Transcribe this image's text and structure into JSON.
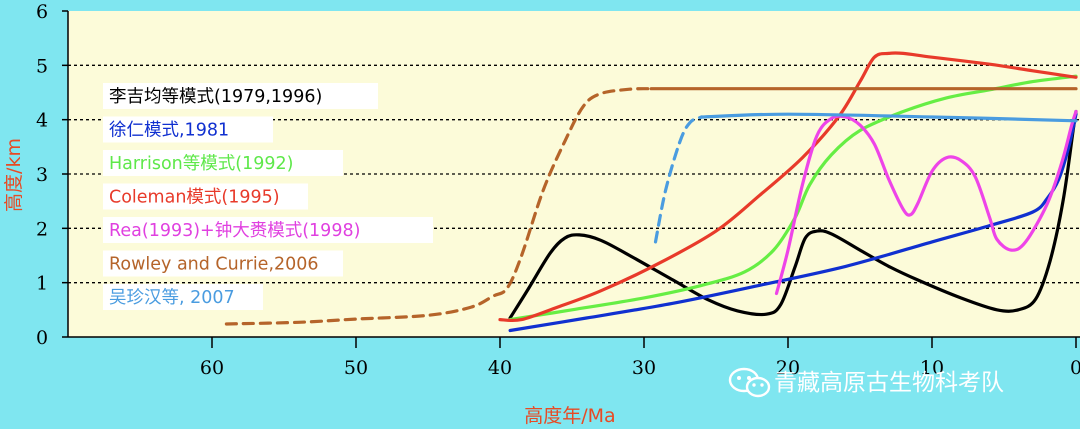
{
  "chart_data": {
    "type": "line",
    "title": "",
    "xlabel": "高度年/Ma",
    "ylabel": "高度/km",
    "xlim": [
      70,
      0
    ],
    "ylim": [
      0,
      6
    ],
    "xticks": [
      60,
      50,
      40,
      30,
      20,
      10,
      0
    ],
    "yticks": [
      0,
      1,
      2,
      3,
      4,
      5,
      6
    ],
    "grid": "horizontal dotted lines at 1–5 km",
    "legend_position": "left",
    "series": [
      {
        "name": "李吉均等模式(1979,1996)",
        "color": "#000000",
        "dash": false,
        "points": [
          [
            39.3,
            0.35
          ],
          [
            38,
            0.9
          ],
          [
            36.5,
            1.55
          ],
          [
            35.5,
            1.82
          ],
          [
            34.5,
            1.88
          ],
          [
            33,
            1.78
          ],
          [
            31,
            1.5
          ],
          [
            28,
            1.05
          ],
          [
            25.5,
            0.68
          ],
          [
            23.5,
            0.48
          ],
          [
            21.5,
            0.42
          ],
          [
            20.5,
            0.6
          ],
          [
            19.5,
            1.3
          ],
          [
            18.8,
            1.82
          ],
          [
            18,
            1.95
          ],
          [
            17,
            1.9
          ],
          [
            15,
            1.6
          ],
          [
            13,
            1.3
          ],
          [
            11,
            1.05
          ],
          [
            8,
            0.72
          ],
          [
            5.5,
            0.5
          ],
          [
            4,
            0.5
          ],
          [
            2.8,
            0.7
          ],
          [
            1.8,
            1.4
          ],
          [
            0.9,
            2.5
          ],
          [
            0.2,
            3.8
          ],
          [
            0,
            4.15
          ]
        ]
      },
      {
        "name": "徐仁模式,1981",
        "color": "#1030d0",
        "dash": false,
        "points": [
          [
            39.3,
            0.12
          ],
          [
            34,
            0.35
          ],
          [
            28,
            0.62
          ],
          [
            22,
            0.95
          ],
          [
            16,
            1.3
          ],
          [
            10,
            1.75
          ],
          [
            6,
            2.05
          ],
          [
            3,
            2.3
          ],
          [
            2,
            2.55
          ],
          [
            1.2,
            2.9
          ],
          [
            0.5,
            3.5
          ],
          [
            0,
            4.1
          ]
        ]
      },
      {
        "name": "Harrison等模式(1992)",
        "color": "#66ee44",
        "dash": false,
        "points": [
          [
            39.3,
            0.32
          ],
          [
            35,
            0.5
          ],
          [
            30,
            0.72
          ],
          [
            26,
            0.95
          ],
          [
            23,
            1.2
          ],
          [
            21,
            1.6
          ],
          [
            19.5,
            2.2
          ],
          [
            18.5,
            2.8
          ],
          [
            17,
            3.35
          ],
          [
            15,
            3.8
          ],
          [
            12,
            4.15
          ],
          [
            9,
            4.4
          ],
          [
            6,
            4.55
          ],
          [
            3,
            4.7
          ],
          [
            0,
            4.8
          ]
        ]
      },
      {
        "name": "Coleman模式(1995)",
        "color": "#e83a2a",
        "dash": false,
        "points": [
          [
            40,
            0.32
          ],
          [
            38.5,
            0.32
          ],
          [
            36,
            0.55
          ],
          [
            33,
            0.85
          ],
          [
            29,
            1.35
          ],
          [
            25,
            1.95
          ],
          [
            22,
            2.6
          ],
          [
            19,
            3.3
          ],
          [
            16.5,
            4.05
          ],
          [
            15,
            4.7
          ],
          [
            14,
            5.15
          ],
          [
            13,
            5.22
          ],
          [
            12,
            5.22
          ],
          [
            10,
            5.15
          ],
          [
            6,
            5.02
          ],
          [
            3,
            4.9
          ],
          [
            0,
            4.78
          ]
        ]
      },
      {
        "name": "Rea(1993)+钟大赉模式(1998)",
        "color": "#ee44e8",
        "dash": false,
        "points": [
          [
            20.8,
            0.8
          ],
          [
            20,
            1.6
          ],
          [
            19,
            2.8
          ],
          [
            18,
            3.7
          ],
          [
            17,
            4.02
          ],
          [
            16,
            4.05
          ],
          [
            15,
            3.9
          ],
          [
            14,
            3.55
          ],
          [
            13,
            2.9
          ],
          [
            12,
            2.35
          ],
          [
            11.5,
            2.25
          ],
          [
            11,
            2.45
          ],
          [
            10,
            3.05
          ],
          [
            9,
            3.3
          ],
          [
            8,
            3.25
          ],
          [
            7,
            2.95
          ],
          [
            6,
            2.2
          ],
          [
            5.5,
            1.8
          ],
          [
            4.5,
            1.6
          ],
          [
            3.5,
            1.75
          ],
          [
            2,
            2.45
          ],
          [
            1,
            3.2
          ],
          [
            0.3,
            3.9
          ],
          [
            0,
            4.15
          ]
        ]
      },
      {
        "name": "Rowley and Currie,2006",
        "color": "#b5642a",
        "dash": true,
        "points": [
          [
            59,
            0.24
          ],
          [
            54,
            0.27
          ],
          [
            50,
            0.33
          ],
          [
            45,
            0.4
          ],
          [
            42,
            0.55
          ],
          [
            40.5,
            0.75
          ],
          [
            39.5,
            0.9
          ],
          [
            38.5,
            1.5
          ],
          [
            37,
            2.7
          ],
          [
            35.5,
            3.6
          ],
          [
            34.2,
            4.25
          ],
          [
            33,
            4.48
          ],
          [
            31,
            4.56
          ],
          [
            29.5,
            4.57
          ]
        ]
      },
      {
        "name": "Rowley and Currie,2006 (continued)",
        "color": "#b5642a",
        "dash": false,
        "points": [
          [
            29.5,
            4.57
          ],
          [
            20,
            4.57
          ],
          [
            10,
            4.57
          ],
          [
            0,
            4.57
          ]
        ]
      },
      {
        "name": "吴珍汉等, 2007",
        "color": "#4a9ce0",
        "dash": true,
        "points": [
          [
            29.2,
            1.75
          ],
          [
            28.5,
            2.7
          ],
          [
            27.5,
            3.6
          ],
          [
            26.8,
            3.95
          ],
          [
            26,
            4.05
          ]
        ]
      },
      {
        "name": "吴珍汉等, 2007 (continued)",
        "color": "#4a9ce0",
        "dash": false,
        "points": [
          [
            26,
            4.05
          ],
          [
            20,
            4.1
          ],
          [
            10,
            4.05
          ],
          [
            0,
            3.98
          ]
        ]
      }
    ]
  },
  "legend": [
    {
      "label": "李吉均等模式(1979,1996)",
      "color": "#000000"
    },
    {
      "label": "徐仁模式,1981",
      "color": "#1030d0"
    },
    {
      "label": "Harrison等模式(1992)",
      "color": "#5ee84a"
    },
    {
      "label": "Coleman模式(1995)",
      "color": "#e83a2a"
    },
    {
      "label": "Rea(1993)+钟大赉模式(1998)",
      "color": "#e040e0"
    },
    {
      "label": "Rowley and Currie,2006",
      "color": "#b5642a"
    },
    {
      "label": "吴珍汉等, 2007",
      "color": "#4a9ce0"
    }
  ],
  "watermark": {
    "text": "青藏高原古生物科考队",
    "icon": "wechat-icon"
  }
}
